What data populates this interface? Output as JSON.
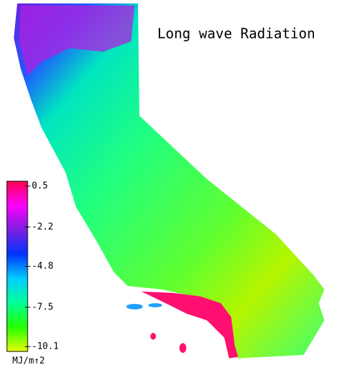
{
  "map": {
    "title": "Long wave Radiation",
    "colorbar": {
      "lim": [
        -10.1,
        0.5
      ],
      "ticks": [
        0.5,
        -2.2,
        -4.8,
        -7.5,
        -10.1
      ],
      "unit": "MJ/m↑2",
      "colors": [
        "#ff0050",
        "#ff00ff",
        "#7a1fe0",
        "#0033ff",
        "#00ccff",
        "#00ff99",
        "#22ff00",
        "#e8ff00"
      ]
    }
  }
}
